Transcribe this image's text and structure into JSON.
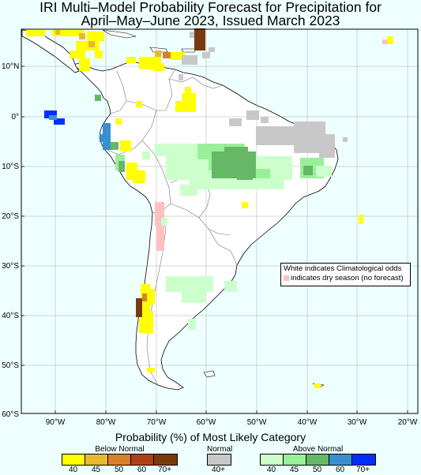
{
  "title_line1": "IRI Multi–Model Probability Forecast for Precipitation for",
  "title_line2": "April–May–June 2023, Issued March 2023",
  "lat_labels": [
    "10°N",
    "0°",
    "10°S",
    "20°S",
    "30°S",
    "40°S",
    "50°S",
    "60°S"
  ],
  "lon_labels": [
    "90°W",
    "80°W",
    "70°W",
    "60°W",
    "50°W",
    "40°W",
    "30°W",
    "20°W"
  ],
  "note": {
    "line1": "White indicates Climatological odds",
    "line2": "indicates dry season (no forecast)"
  },
  "legend": {
    "title": "Probability (%) of Most Likely Category",
    "below": {
      "name": "Below Normal",
      "values": [
        "40",
        "45",
        "50",
        "60",
        "70+"
      ],
      "colors": [
        "#ffff00",
        "#e8b830",
        "#d8802a",
        "#b04018",
        "#7a3a10"
      ]
    },
    "normal": {
      "name": "Normal",
      "values": [
        "40+"
      ],
      "colors": [
        "#c8c8c8"
      ]
    },
    "above": {
      "name": "Above Normal",
      "values": [
        "40",
        "45",
        "50",
        "60",
        "70+"
      ],
      "colors": [
        "#ccffcc",
        "#98f098",
        "#66b866",
        "#3890d0",
        "#0030ff"
      ]
    }
  },
  "colors": {
    "ocean": "#eeffff",
    "land": "#ffffff",
    "dry_season": "#ffc0c0"
  }
}
